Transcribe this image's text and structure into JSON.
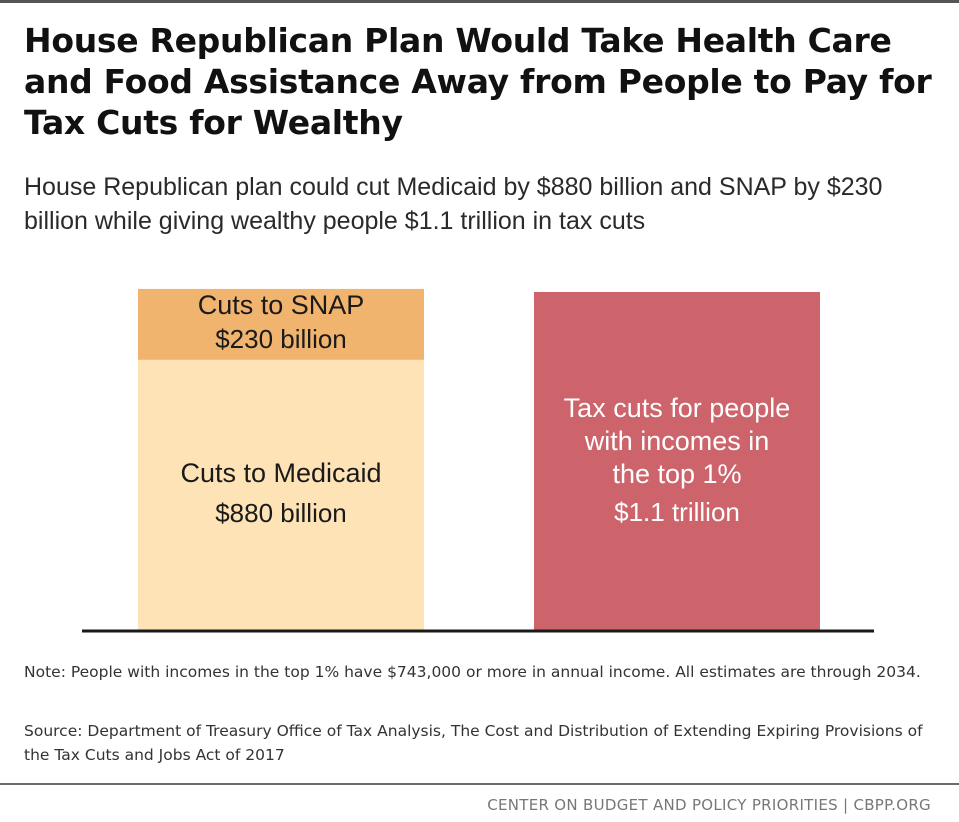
{
  "header": {
    "title": "House Republican Plan Would Take Health Care and Food Assistance Away from People to Pay for Tax Cuts for Wealthy",
    "subtitle": "House Republican plan could cut Medicaid by $880 billion and SNAP by $230 billion while giving wealthy people $1.1 trillion in tax cuts"
  },
  "colors": {
    "snap": "#f0b46e",
    "medicaid": "#fde3b5",
    "tax_cuts": "#cd646b",
    "baseline": "#1a1a1a"
  },
  "chart_data": {
    "type": "bar",
    "stacked": true,
    "unit": "billion dollars",
    "title": "",
    "xlabel": "",
    "ylabel": "",
    "grid": false,
    "ylim": [
      0,
      1100
    ],
    "bars": [
      {
        "name": "cuts",
        "segments": [
          {
            "name": "medicaid",
            "label_lines": [
              "Cuts to Medicaid"
            ],
            "value_label": "$880 billion",
            "value": 880
          },
          {
            "name": "snap",
            "label_lines": [
              "Cuts to SNAP"
            ],
            "value_label": "$230 billion",
            "value": 230
          }
        ]
      },
      {
        "name": "tax-cuts",
        "segments": [
          {
            "name": "tax_cuts",
            "label_lines": [
              "Tax cuts for people",
              "with incomes in",
              "the top 1%"
            ],
            "value_label": "$1.1 trillion",
            "value": 1100
          }
        ]
      }
    ]
  },
  "footnotes": {
    "note": "Note: People with incomes in the top 1% have $743,000 or more in annual income. All estimates are through 2034.",
    "source": "Source: Department of Treasury Office of Tax Analysis, The Cost and Distribution of Extending Expiring Provisions of the Tax Cuts and Jobs Act of 2017"
  },
  "footer": {
    "credit": "CENTER ON BUDGET AND POLICY PRIORITIES | CBPP.ORG"
  }
}
